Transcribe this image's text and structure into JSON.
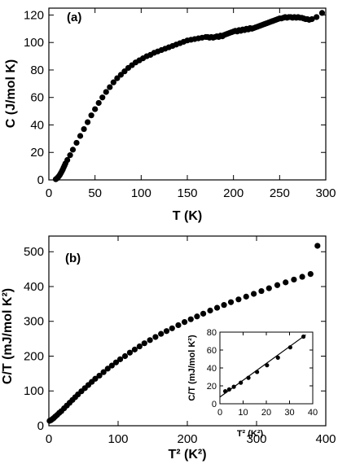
{
  "chart_data": [
    {
      "type": "scatter",
      "panel_label": "(a)",
      "xlabel": "T (K)",
      "ylabel": "C (J/mol K)",
      "xlim": [
        0,
        300
      ],
      "ylim": [
        0,
        125
      ],
      "xticks": [
        0,
        50,
        100,
        150,
        200,
        250,
        300
      ],
      "yticks": [
        0,
        20,
        40,
        60,
        80,
        100,
        120
      ],
      "series": [
        {
          "x": [
            7.5,
            9,
            10,
            11,
            12,
            13,
            14,
            15,
            16,
            17,
            18,
            20,
            23,
            26,
            30,
            34,
            38,
            42,
            46,
            50,
            54,
            58,
            62,
            66,
            70,
            74,
            78,
            82,
            86,
            90,
            94,
            98,
            102,
            106,
            110,
            114,
            118,
            122,
            126,
            130,
            134,
            138,
            142,
            146,
            150,
            154,
            158,
            162,
            166,
            170,
            172,
            174,
            176,
            178,
            180,
            182,
            184,
            186,
            188,
            190,
            192,
            194,
            196,
            198,
            200,
            202,
            204,
            206,
            208,
            210,
            212,
            214,
            216,
            218,
            220,
            222,
            224,
            226,
            228,
            230,
            232,
            234,
            236,
            238,
            240,
            242,
            244,
            246,
            248,
            250,
            252,
            254,
            256,
            258,
            260,
            262,
            264,
            266,
            268,
            270,
            272,
            274,
            276,
            278,
            280,
            282,
            285,
            290,
            296
          ],
          "y": [
            0.5,
            1.2,
            2,
            2.8,
            3.8,
            5,
            6.2,
            7.5,
            9,
            10.5,
            12,
            14.5,
            18,
            22,
            27,
            32,
            37,
            42,
            47,
            51.5,
            56,
            60,
            64,
            67.5,
            71,
            74,
            76.5,
            79,
            81.5,
            83.5,
            85.5,
            87,
            88.5,
            90,
            91,
            92.5,
            93.5,
            94.5,
            95.5,
            96.5,
            97.5,
            98.5,
            99.5,
            100.5,
            101.5,
            102,
            102.5,
            103,
            103.5,
            104,
            104,
            103.5,
            104,
            103.5,
            104,
            104.5,
            104,
            105,
            104.5,
            105.5,
            106,
            106.5,
            107,
            107.5,
            108,
            108.5,
            108,
            109,
            108.5,
            109.5,
            109,
            110,
            109.5,
            110.5,
            110,
            110.5,
            111,
            111.5,
            112,
            112.5,
            113,
            113.5,
            114,
            114.5,
            115,
            115.5,
            116,
            116.5,
            117,
            117.5,
            117.5,
            118,
            118.5,
            118,
            118.5,
            118.5,
            118,
            118.5,
            118,
            118.5,
            118,
            118,
            117.5,
            117,
            117,
            116.5,
            117,
            118.5,
            121.5
          ]
        }
      ]
    },
    {
      "type": "scatter",
      "panel_label": "(b)",
      "xlabel": "T² (K²)",
      "ylabel": "C/T (mJ/mol K²)",
      "xlim": [
        0,
        400
      ],
      "ylim": [
        0,
        545
      ],
      "xticks": [
        0,
        100,
        200,
        300,
        400
      ],
      "yticks": [
        0,
        100,
        200,
        300,
        400,
        500
      ],
      "series": [
        {
          "x": [
            1,
            3,
            5,
            7,
            9,
            12,
            15,
            18,
            22,
            26,
            30,
            34,
            38,
            42,
            47,
            52,
            57,
            62,
            67,
            73,
            79,
            85,
            91,
            97,
            103,
            110,
            117,
            124,
            131,
            138,
            146,
            154,
            162,
            170,
            178,
            187,
            196,
            205,
            214,
            223,
            233,
            243,
            253,
            263,
            274,
            285,
            296,
            307,
            318,
            330,
            342,
            354,
            366,
            378,
            388
          ],
          "y": [
            14,
            16,
            19,
            22,
            26,
            31,
            37,
            42,
            50,
            58,
            66,
            74,
            82,
            90,
            99,
            108,
            117,
            126,
            135,
            144,
            154,
            164,
            173,
            182,
            191,
            200,
            210,
            219,
            228,
            237,
            246,
            255,
            264,
            272,
            280,
            289,
            298,
            306,
            314,
            322,
            331,
            339,
            347,
            355,
            363,
            371,
            379,
            387,
            395,
            404,
            412,
            420,
            428,
            436,
            517
          ]
        }
      ]
    },
    {
      "type": "scatter",
      "panel_label": "",
      "xlabel": "T² (K²)",
      "ylabel": "C/T (mJ/mol K²)",
      "xlim": [
        0,
        40
      ],
      "ylim": [
        0,
        80
      ],
      "xticks": [
        0,
        10,
        20,
        30,
        40
      ],
      "yticks": [
        0,
        20,
        40,
        60,
        80
      ],
      "series": [
        {
          "x": [
            2.3,
            4,
            6,
            9,
            12.3,
            16,
            20.3,
            25,
            30.3,
            36
          ],
          "y": [
            14,
            16,
            19,
            23.5,
            29,
            35.5,
            43,
            51.5,
            63,
            75
          ]
        }
      ],
      "fit_line": {
        "x": [
          0,
          37
        ],
        "y": [
          7.5,
          77
        ]
      }
    }
  ]
}
